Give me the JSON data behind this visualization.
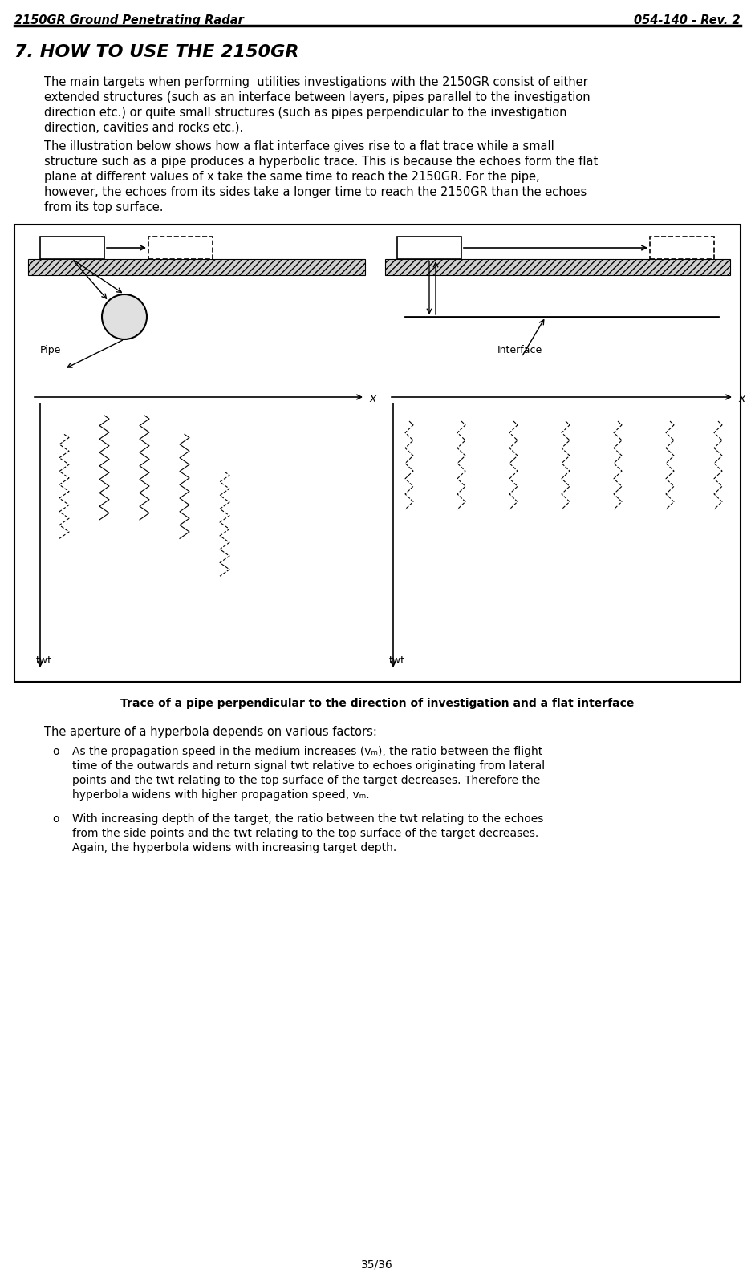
{
  "header_left": "2150GR Ground Penetrating Radar",
  "header_right": "054-140 - Rev. 2",
  "section_title": "7. HOW TO USE THE 2150GR",
  "para1": "The main targets when performing  utilities investigations with the 2150GR consist of either extended structures (such as an interface between layers, pipes parallel to the investigation direction etc.) or quite small structures (such as pipes perpendicular to the investigation direction, cavities and rocks etc.).",
  "para2": "The illustration below shows how a flat interface gives rise to a flat trace while a small structure such as a pipe produces a hyperbolic trace. This is because the echoes form the flat plane at different values of x take the same time to reach the 2150GR. For the pipe, however, the echoes from its sides take a longer time to reach the 2150GR than the echoes from its top surface.",
  "figure_caption": "Trace of a pipe perpendicular to the direction of investigation and a flat interface",
  "bullet_intro": "The aperture of a hyperbola depends on various factors:",
  "bullet1": "As the propagation speed in the medium increases (vₘ), the ratio between the flight time of the outwards and return signal twt relative to echoes originating from lateral points and the twt relating to the top surface of the target decreases. Therefore the hyperbola widens with higher propagation speed, vₘ.",
  "bullet2": "With increasing depth of the target, the ratio between the twt relating to the echoes from the side points and the twt relating to the top surface of the target decreases. Again, the hyperbola widens with increasing target depth.",
  "footer": "35/36",
  "bg_color": "#ffffff",
  "text_color": "#000000",
  "fig_bg": "#ffffff",
  "fig_border": "#000000"
}
